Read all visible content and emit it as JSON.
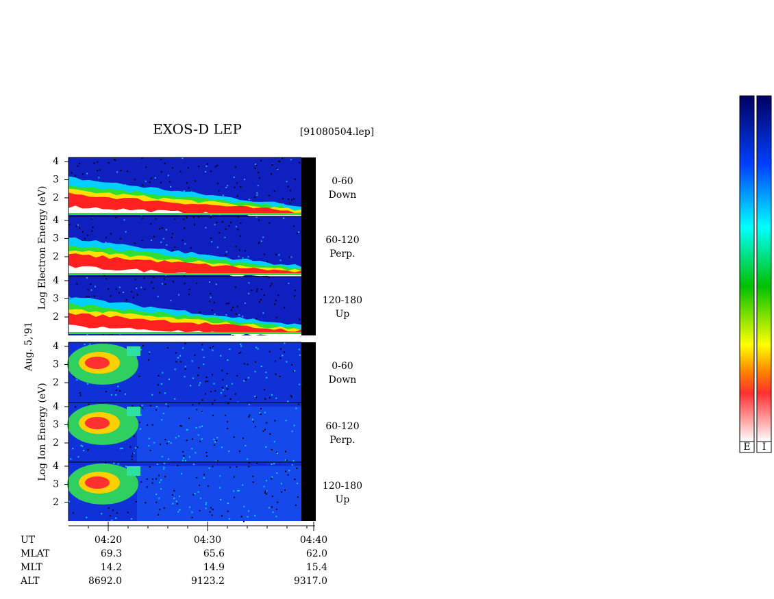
{
  "title": "EXOS-D LEP",
  "file": "[91080504.lep]",
  "date": "Aug. 5,'91",
  "electron_axis_label": "Log Electron Energy (eV)",
  "ion_axis_label": "Log Ion Energy (eV)",
  "energy_ticks": [
    "4",
    "3",
    "2"
  ],
  "panels": [
    {
      "range": "0-60",
      "direction": "Down"
    },
    {
      "range": "60-120",
      "direction": "Perp."
    },
    {
      "range": "120-180",
      "direction": "Up"
    },
    {
      "range": "0-60",
      "direction": "Down"
    },
    {
      "range": "60-120",
      "direction": "Perp."
    },
    {
      "range": "120-180",
      "direction": "Up"
    }
  ],
  "rows": [
    {
      "name": "UT",
      "values": [
        "04:20",
        "04:30",
        "04:40"
      ]
    },
    {
      "name": "MLAT",
      "values": [
        "69.3",
        "65.6",
        "62.0"
      ]
    },
    {
      "name": "MLT",
      "values": [
        "14.2",
        "14.9",
        "15.4"
      ]
    },
    {
      "name": "ALT",
      "values": [
        "8692.0",
        "9123.2",
        "9317.0"
      ]
    }
  ],
  "colorbars": [
    "E",
    "I"
  ]
}
